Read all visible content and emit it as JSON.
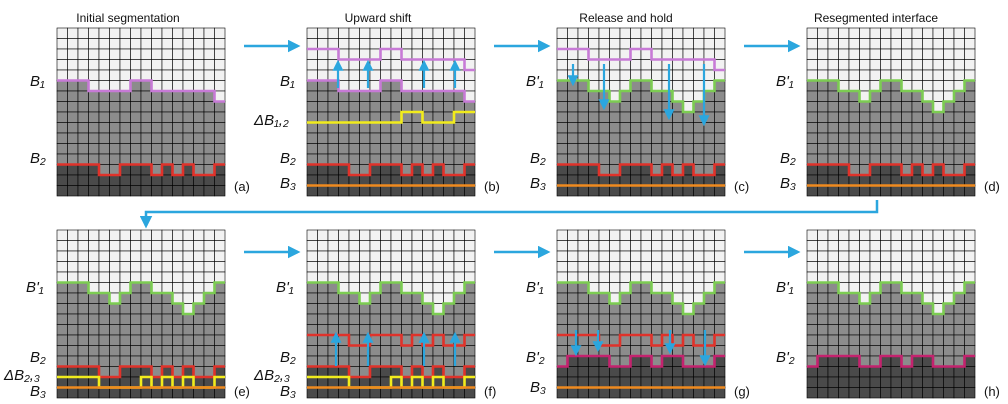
{
  "titles": {
    "initial": "Initial segmentation",
    "upward": "Upward shift",
    "release": "Release and hold",
    "reseg": "Resegmented interface"
  },
  "panel_letters": [
    "(a)",
    "(b)",
    "(c)",
    "(d)",
    "(e)",
    "(f)",
    "(g)",
    "(h)"
  ],
  "labels": {
    "B1": "B₁",
    "B1p": "B'₁",
    "B2": "B₂",
    "B2p": "B'₂",
    "B3": "B₃",
    "dB12": "ΔB₁,₂",
    "dB23": "ΔB₂,₃"
  },
  "colors": {
    "light_cell": "#f2f2f2",
    "gray_cell": "#8c8c8c",
    "dark_cell": "#4a4a4a",
    "grid_line": "#000000",
    "purple": "#c77ad6",
    "green": "#7ccc52",
    "red": "#e0322a",
    "yellow": "#f2ec1c",
    "orange": "#f08a1e",
    "magenta": "#c4226e",
    "arrow": "#2ba6de"
  },
  "icons": {
    "flow_arrow": "right-arrow-icon",
    "shift_arrow": "vertical-arrow-icon"
  }
}
